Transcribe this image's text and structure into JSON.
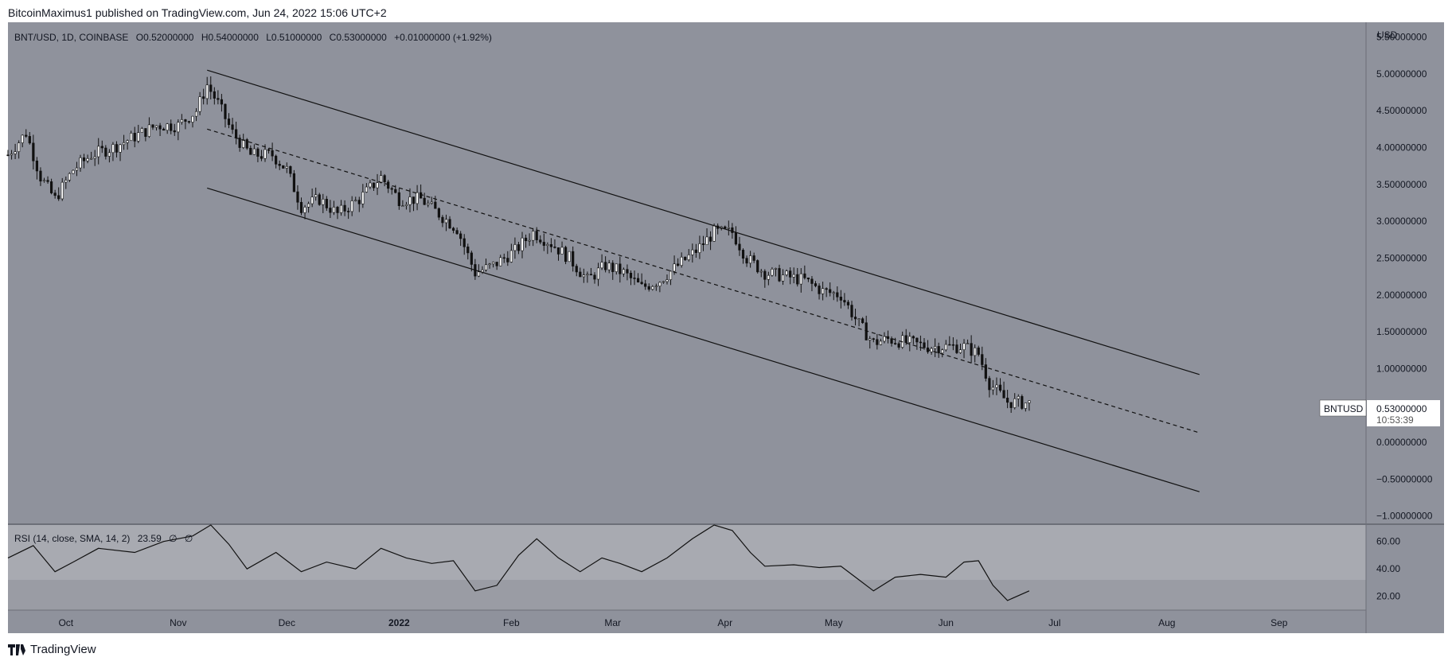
{
  "header": {
    "published": "BitcoinMaximus1 published on TradingView.com, Jun 24, 2022 15:06 UTC+2"
  },
  "footer": {
    "brand": "TradingView"
  },
  "legend": {
    "symbol": "BNT/USD, 1D, COINBASE",
    "o_label": "O",
    "o": "0.52000000",
    "h_label": "H",
    "h": "0.54000000",
    "l_label": "L",
    "l": "0.51000000",
    "c_label": "C",
    "c": "0.53000000",
    "change": "+0.01000000 (+1.92%)"
  },
  "rsi_legend": {
    "label": "RSI (14, close, SMA, 14, 2)",
    "value": "23.59",
    "extra1": "∅",
    "extra2": "∅"
  },
  "price_tag": {
    "symbol": "BNTUSD",
    "price": "0.53000000",
    "countdown": "10:53:39"
  },
  "colors": {
    "chart_bg": "#8f929c",
    "rsi_bg": "#9a9ca4",
    "rsi_band": "#a8aab1",
    "line": "#111111"
  },
  "chart_data": [
    {
      "type": "candlestick",
      "title": "BNT/USD, 1D, COINBASE",
      "currency": "USD",
      "ylim": [
        -1.1,
        5.7
      ],
      "y_ticks": [
        "5.50000000",
        "5.00000000",
        "4.50000000",
        "4.00000000",
        "3.50000000",
        "3.00000000",
        "2.50000000",
        "2.00000000",
        "1.50000000",
        "1.00000000",
        "0.50000000",
        "0.00000000",
        "−0.50000000",
        "−1.00000000"
      ],
      "x_ticks": [
        "Oct",
        "Nov",
        "Dec",
        "2022",
        "Feb",
        "Mar",
        "Apr",
        "May",
        "Jun",
        "Jul",
        "Aug",
        "Sep"
      ],
      "x_range": [
        "2021-09-15",
        "2022-09-25"
      ],
      "price_close_approx": [
        [
          "2021-09-15",
          3.9
        ],
        [
          "2021-09-20",
          4.2
        ],
        [
          "2021-09-24",
          3.6
        ],
        [
          "2021-09-28",
          3.3
        ],
        [
          "2021-10-03",
          3.7
        ],
        [
          "2021-10-08",
          3.9
        ],
        [
          "2021-10-14",
          4.0
        ],
        [
          "2021-10-20",
          4.15
        ],
        [
          "2021-10-26",
          4.3
        ],
        [
          "2021-11-01",
          4.3
        ],
        [
          "2021-11-06",
          4.5
        ],
        [
          "2021-11-09",
          4.85
        ],
        [
          "2021-11-12",
          4.6
        ],
        [
          "2021-11-16",
          4.2
        ],
        [
          "2021-11-21",
          3.9
        ],
        [
          "2021-11-27",
          3.9
        ],
        [
          "2021-12-01",
          3.7
        ],
        [
          "2021-12-05",
          3.2
        ],
        [
          "2021-12-10",
          3.3
        ],
        [
          "2021-12-15",
          3.1
        ],
        [
          "2021-12-21",
          3.3
        ],
        [
          "2021-12-27",
          3.6
        ],
        [
          "2022-01-01",
          3.3
        ],
        [
          "2022-01-07",
          3.3
        ],
        [
          "2022-01-12",
          3.1
        ],
        [
          "2022-01-17",
          2.9
        ],
        [
          "2022-01-22",
          2.3
        ],
        [
          "2022-01-27",
          2.4
        ],
        [
          "2022-02-02",
          2.6
        ],
        [
          "2022-02-07",
          2.85
        ],
        [
          "2022-02-12",
          2.7
        ],
        [
          "2022-02-17",
          2.5
        ],
        [
          "2022-02-22",
          2.2
        ],
        [
          "2022-02-27",
          2.4
        ],
        [
          "2022-03-04",
          2.3
        ],
        [
          "2022-03-09",
          2.1
        ],
        [
          "2022-03-14",
          2.2
        ],
        [
          "2022-03-19",
          2.4
        ],
        [
          "2022-03-24",
          2.6
        ],
        [
          "2022-03-29",
          2.85
        ],
        [
          "2022-04-03",
          2.85
        ],
        [
          "2022-04-07",
          2.5
        ],
        [
          "2022-04-12",
          2.3
        ],
        [
          "2022-04-18",
          2.25
        ],
        [
          "2022-04-23",
          2.2
        ],
        [
          "2022-04-28",
          2.05
        ],
        [
          "2022-05-03",
          2.0
        ],
        [
          "2022-05-08",
          1.6
        ],
        [
          "2022-05-12",
          1.35
        ],
        [
          "2022-05-16",
          1.4
        ],
        [
          "2022-05-22",
          1.35
        ],
        [
          "2022-05-27",
          1.3
        ],
        [
          "2022-06-01",
          1.3
        ],
        [
          "2022-06-06",
          1.3
        ],
        [
          "2022-06-10",
          1.2
        ],
        [
          "2022-06-13",
          0.8
        ],
        [
          "2022-06-18",
          0.55
        ],
        [
          "2022-06-24",
          0.53
        ]
      ],
      "channel": {
        "upper": [
          [
            "2021-11-09",
            5.05
          ],
          [
            "2022-08-10",
            0.92
          ]
        ],
        "middle": [
          [
            "2021-11-09",
            4.25
          ],
          [
            "2022-08-10",
            0.13
          ]
        ],
        "lower": [
          [
            "2021-11-09",
            3.45
          ],
          [
            "2022-08-10",
            -0.67
          ]
        ]
      }
    },
    {
      "type": "line",
      "title": "RSI (14, close, SMA, 14, 2)",
      "ylim": [
        10,
        72
      ],
      "y_ticks": [
        "60.00",
        "40.00",
        "20.00"
      ],
      "band": [
        30,
        70
      ],
      "values_approx": [
        [
          "2021-09-15",
          48
        ],
        [
          "2021-09-22",
          57
        ],
        [
          "2021-09-28",
          38
        ],
        [
          "2021-10-03",
          45
        ],
        [
          "2021-10-10",
          55
        ],
        [
          "2021-10-20",
          52
        ],
        [
          "2021-10-28",
          60
        ],
        [
          "2021-11-05",
          64
        ],
        [
          "2021-11-10",
          72
        ],
        [
          "2021-11-15",
          58
        ],
        [
          "2021-11-20",
          40
        ],
        [
          "2021-11-28",
          52
        ],
        [
          "2021-12-05",
          38
        ],
        [
          "2021-12-12",
          45
        ],
        [
          "2021-12-20",
          40
        ],
        [
          "2021-12-27",
          55
        ],
        [
          "2022-01-03",
          48
        ],
        [
          "2022-01-10",
          44
        ],
        [
          "2022-01-16",
          46
        ],
        [
          "2022-01-22",
          24
        ],
        [
          "2022-01-28",
          28
        ],
        [
          "2022-02-03",
          50
        ],
        [
          "2022-02-08",
          62
        ],
        [
          "2022-02-14",
          48
        ],
        [
          "2022-02-20",
          38
        ],
        [
          "2022-02-26",
          48
        ],
        [
          "2022-03-03",
          44
        ],
        [
          "2022-03-09",
          38
        ],
        [
          "2022-03-16",
          48
        ],
        [
          "2022-03-23",
          62
        ],
        [
          "2022-03-29",
          72
        ],
        [
          "2022-04-03",
          68
        ],
        [
          "2022-04-08",
          52
        ],
        [
          "2022-04-12",
          42
        ],
        [
          "2022-04-20",
          43
        ],
        [
          "2022-04-27",
          41
        ],
        [
          "2022-05-03",
          42
        ],
        [
          "2022-05-08",
          32
        ],
        [
          "2022-05-12",
          24
        ],
        [
          "2022-05-18",
          34
        ],
        [
          "2022-05-25",
          36
        ],
        [
          "2022-06-01",
          34
        ],
        [
          "2022-06-06",
          45
        ],
        [
          "2022-06-10",
          46
        ],
        [
          "2022-06-14",
          28
        ],
        [
          "2022-06-18",
          17
        ],
        [
          "2022-06-24",
          24
        ]
      ]
    }
  ]
}
